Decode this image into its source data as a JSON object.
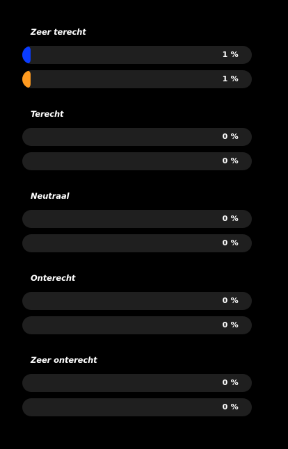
{
  "colors": {
    "series_a": "#0a3cff",
    "series_b": "#ff9a1f",
    "track": "#1f1f1f",
    "background": "#000000"
  },
  "groups": [
    {
      "title": "Zeer terecht",
      "bars": [
        {
          "series": "series_a",
          "value_percent": 1,
          "label": "1 %"
        },
        {
          "series": "series_b",
          "value_percent": 1,
          "label": "1 %"
        }
      ]
    },
    {
      "title": "Terecht",
      "bars": [
        {
          "series": "series_a",
          "value_percent": 0,
          "label": "0 %"
        },
        {
          "series": "series_b",
          "value_percent": 0,
          "label": "0 %"
        }
      ]
    },
    {
      "title": "Neutraal",
      "bars": [
        {
          "series": "series_a",
          "value_percent": 0,
          "label": "0 %"
        },
        {
          "series": "series_b",
          "value_percent": 0,
          "label": "0 %"
        }
      ]
    },
    {
      "title": "Onterecht",
      "bars": [
        {
          "series": "series_a",
          "value_percent": 0,
          "label": "0 %"
        },
        {
          "series": "series_b",
          "value_percent": 0,
          "label": "0 %"
        }
      ]
    },
    {
      "title": "Zeer onterecht",
      "bars": [
        {
          "series": "series_a",
          "value_percent": 0,
          "label": "0 %"
        },
        {
          "series": "series_b",
          "value_percent": 0,
          "label": "0 %"
        }
      ]
    }
  ]
}
